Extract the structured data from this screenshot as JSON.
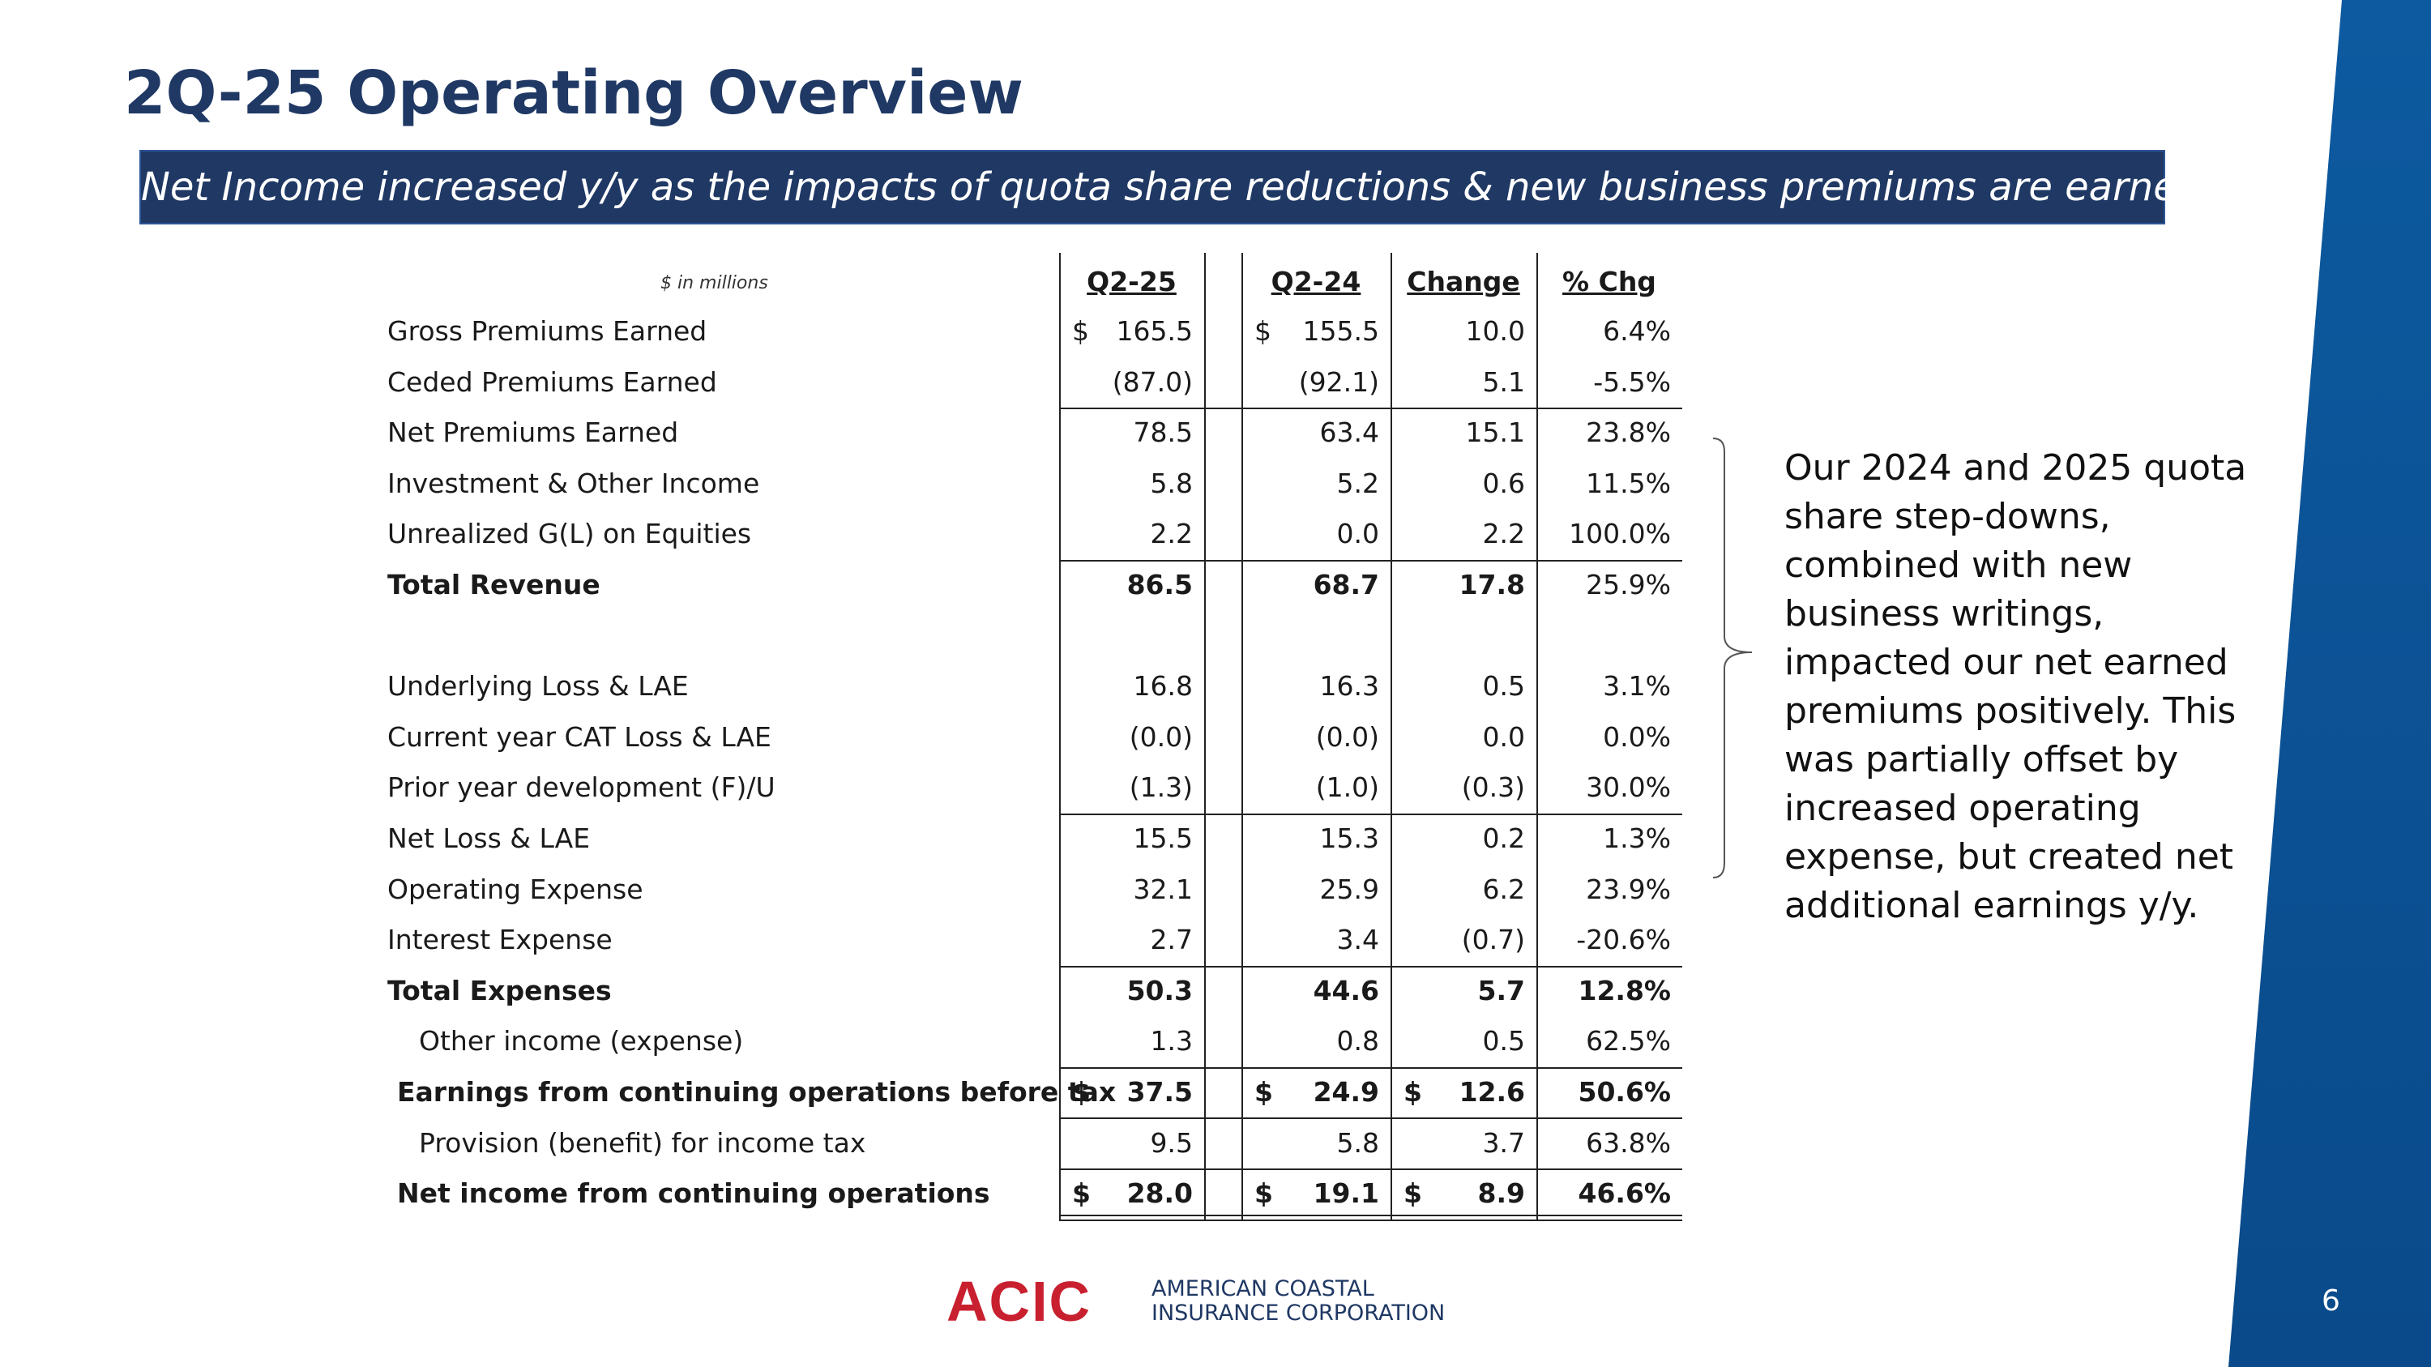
{
  "header": {
    "title": "2Q-25 Operating Overview",
    "banner": "Net Income increased y/y as the impacts of quota share reductions & new business premiums are earned."
  },
  "table": {
    "unit_note": "$ in millions",
    "currency_symbol": "$",
    "columns": [
      "Q2-25",
      "Q2-24",
      "Change",
      "% Chg"
    ],
    "rows": [
      {
        "label": "Gross Premiums Earned",
        "values": [
          "165.5",
          "155.5",
          "10.0",
          "6.4%"
        ],
        "currency_columns": [
          0,
          1
        ]
      },
      {
        "label": "Ceded Premiums Earned",
        "values": [
          "(87.0)",
          "(92.1)",
          "5.1",
          "-5.5%"
        ],
        "rule_after": true
      },
      {
        "label": "Net Premiums Earned",
        "values": [
          "78.5",
          "63.4",
          "15.1",
          "23.8%"
        ]
      },
      {
        "label": "Investment & Other Income",
        "values": [
          "5.8",
          "5.2",
          "0.6",
          "11.5%"
        ]
      },
      {
        "label": "Unrealized G(L) on Equities",
        "values": [
          "2.2",
          "0.0",
          "2.2",
          "100.0%"
        ],
        "rule_after": true
      },
      {
        "label": "Total Revenue",
        "bold": true,
        "values": [
          "86.5",
          "68.7",
          "17.8",
          "25.9%"
        ],
        "bold_columns": [
          0,
          1,
          2
        ]
      },
      {
        "label": "Underlying Loss & LAE",
        "gap_before": true,
        "values": [
          "16.8",
          "16.3",
          "0.5",
          "3.1%"
        ]
      },
      {
        "label": "Current year CAT Loss & LAE",
        "values": [
          "(0.0)",
          "(0.0)",
          "0.0",
          "0.0%"
        ]
      },
      {
        "label": "Prior year development (F)/U",
        "values": [
          "(1.3)",
          "(1.0)",
          "(0.3)",
          "30.0%"
        ],
        "rule_after": true
      },
      {
        "label": "Net Loss & LAE",
        "values": [
          "15.5",
          "15.3",
          "0.2",
          "1.3%"
        ]
      },
      {
        "label": "Operating Expense",
        "values": [
          "32.1",
          "25.9",
          "6.2",
          "23.9%"
        ]
      },
      {
        "label": "Interest Expense",
        "values": [
          "2.7",
          "3.4",
          "(0.7)",
          "-20.6%"
        ],
        "rule_after": true
      },
      {
        "label": "Total Expenses",
        "bold": true,
        "values": [
          "50.3",
          "44.6",
          "5.7",
          "12.8%"
        ],
        "bold_columns": [
          0,
          1,
          2,
          3
        ]
      },
      {
        "label": "Other income (expense)",
        "indent": 2,
        "values": [
          "1.3",
          "0.8",
          "0.5",
          "62.5%"
        ],
        "rule_after": true
      },
      {
        "label": "Earnings from continuing operations before tax",
        "indent": 1,
        "bold": true,
        "values": [
          "37.5",
          "24.9",
          "12.6",
          "50.6%"
        ],
        "bold_columns": [
          0,
          1,
          2,
          3
        ],
        "currency_columns": [
          0,
          1,
          2
        ],
        "rule_after": true
      },
      {
        "label": "Provision (benefit) for income tax",
        "indent": 2,
        "values": [
          "9.5",
          "5.8",
          "3.7",
          "63.8%"
        ],
        "rule_after": true
      },
      {
        "label": "Net income from continuing operations",
        "indent": 1,
        "bold": true,
        "values": [
          "28.0",
          "19.1",
          "8.9",
          "46.6%"
        ],
        "bold_columns": [
          0,
          1,
          2,
          3
        ],
        "currency_columns": [
          0,
          1,
          2
        ],
        "double_rule_after": true
      }
    ]
  },
  "side_note": [
    "Our 2024 and 2025 quota",
    "share step-downs,",
    "combined with new",
    "business writings,",
    "impacted our net earned",
    "premiums positively. This",
    "was partially offset by",
    "increased operating",
    "expense, but created net",
    "additional earnings y/y."
  ],
  "logo": {
    "mark": "ACIC",
    "name_lines": [
      "AMERICAN COASTAL",
      "INSURANCE CORPORATION"
    ]
  },
  "page_number": "6"
}
